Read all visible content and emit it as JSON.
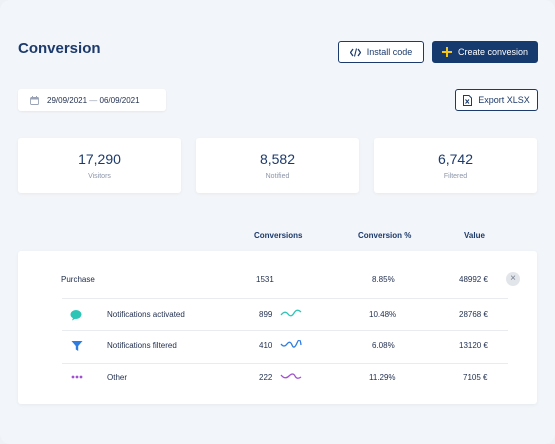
{
  "page": {
    "title": "Conversion"
  },
  "toolbar": {
    "install_label": "Install code",
    "create_label": "Create convesion",
    "export_label": "Export XLSX"
  },
  "date_range": {
    "start": "29/09/2021",
    "separator": "—",
    "end": "06/09/2021"
  },
  "stats": [
    {
      "value": "17,290",
      "label": "Visitors"
    },
    {
      "value": "8,582",
      "label": "Notified"
    },
    {
      "value": "6,742",
      "label": "Filtered"
    }
  ],
  "table": {
    "columns": [
      "Conversions",
      "Conversion %",
      "Value"
    ],
    "parent": {
      "label": "Purchase",
      "conversions": "1531",
      "pct": "8.85%",
      "value": "48992 €"
    },
    "rows": [
      {
        "label": "Notifications activated",
        "conversions": "899",
        "pct": "10.48%",
        "value": "28768 €",
        "icon": "chat-bubble-icon",
        "color": "#2ec4b6"
      },
      {
        "label": "Notifications filtered",
        "conversions": "410",
        "pct": "6.08%",
        "value": "13120 €",
        "icon": "funnel-icon",
        "color": "#2f7de1"
      },
      {
        "label": "Other",
        "conversions": "222",
        "pct": "11.29%",
        "value": "7105 €",
        "icon": "dots-icon",
        "color": "#a24fd0"
      }
    ]
  },
  "colors": {
    "primary": "#173a6e",
    "accent_plus": "#f5c518"
  }
}
